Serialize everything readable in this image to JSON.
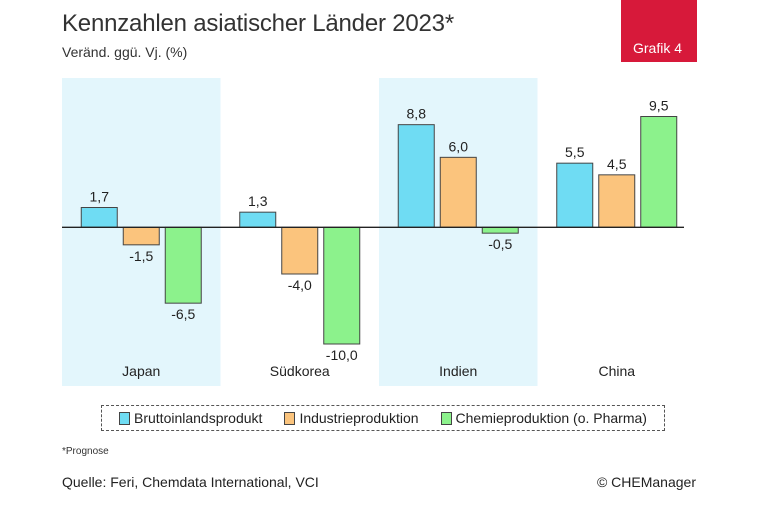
{
  "header": {
    "title": "Kennzahlen asiatischer Länder 2023*",
    "subtitle": "Veränd. ggü. Vj. (%)",
    "badge": "Grafik 4"
  },
  "chart_data": {
    "type": "bar",
    "categories": [
      "Japan",
      "Südkorea",
      "Indien",
      "China"
    ],
    "series": [
      {
        "name": "Bruttoinlandsprodukt",
        "color": "#6fdcf3",
        "values": [
          1.7,
          1.3,
          8.8,
          5.5
        ],
        "labels": [
          "1,7",
          "1,3",
          "8,8",
          "5,5"
        ]
      },
      {
        "name": "Industrieproduktion",
        "color": "#fbc47d",
        "values": [
          -1.5,
          -4.0,
          6.0,
          4.5
        ],
        "labels": [
          "-1,5",
          "-4,0",
          "6,0",
          "4,5"
        ]
      },
      {
        "name": "Chemieproduktion (o. Pharma)",
        "color": "#8cf28c",
        "values": [
          -6.5,
          -10.0,
          -0.5,
          9.5
        ],
        "labels": [
          "-6,5",
          "-10,0",
          "-0,5",
          "9,5"
        ]
      }
    ],
    "ylim": [
      -13.6,
      12.8
    ],
    "highlight_color": "#e3f6fc",
    "highlighted_categories": [
      "Japan",
      "Indien"
    ],
    "title": "Kennzahlen asiatischer Länder 2023*",
    "ylabel": "Veränd. ggü. Vj. (%)",
    "legend_position": "bottom",
    "grid": false
  },
  "footer": {
    "footnote": "*Prognose",
    "source": "Quelle: Feri, Chemdata International, VCI",
    "copyright": "© CHEManager"
  }
}
